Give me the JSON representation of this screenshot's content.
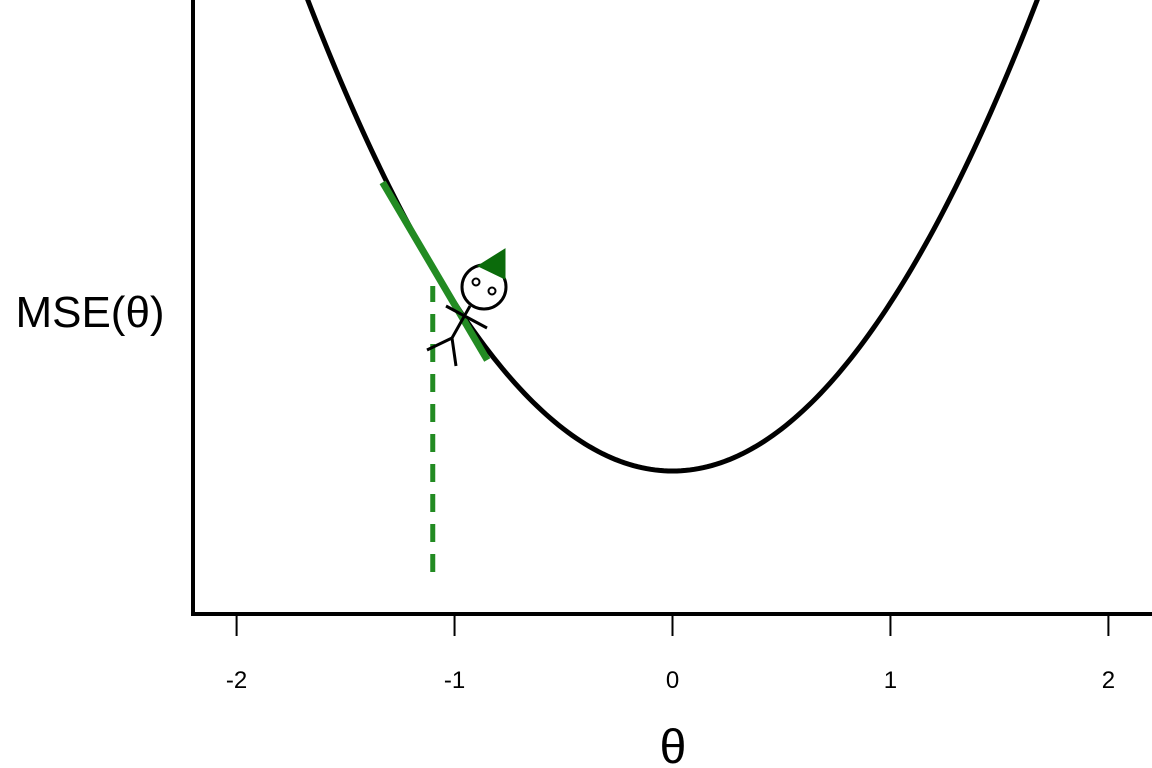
{
  "chart_data": {
    "type": "line",
    "title": "",
    "xlabel": "θ",
    "ylabel": "MSE(θ)",
    "xlim": [
      -2.2,
      2.2
    ],
    "ylim": [
      -0.85,
      2.8
    ],
    "x_ticks": [
      {
        "value": -2,
        "label": "-2"
      },
      {
        "value": -1,
        "label": "-1"
      },
      {
        "value": 0,
        "label": "0"
      },
      {
        "value": 1,
        "label": "1"
      },
      {
        "value": 2,
        "label": "2"
      }
    ],
    "grid": false,
    "show_y_ticks": false,
    "series": [
      {
        "type": "curve",
        "function": "x^2",
        "x_range": [
          -2,
          2
        ],
        "color": "#000000"
      }
    ],
    "annotations": {
      "current_theta": -1.1,
      "tangent": {
        "x_range": [
          -1.33,
          -0.85
        ],
        "color": "#228B22"
      },
      "drop_line": {
        "x": -1.1,
        "y_range": [
          -0.6,
          1.1
        ],
        "color": "#228B22",
        "style": "dashed"
      },
      "stick_figure": {
        "body_color": "#000000",
        "hat_color": "#0b6b0b"
      }
    }
  }
}
